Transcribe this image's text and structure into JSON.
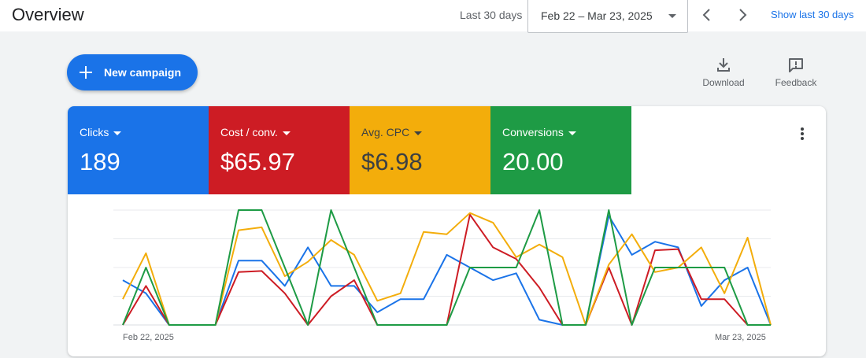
{
  "header": {
    "title": "Overview",
    "range_label": "Last 30 days",
    "date_range": "Feb 22 – Mar 23, 2025",
    "show_last_link": "Show last 30 days"
  },
  "actions": {
    "new_campaign": "New campaign",
    "download": "Download",
    "feedback": "Feedback"
  },
  "metrics": [
    {
      "name": "Clicks",
      "value": "189",
      "color": "#1a73e8"
    },
    {
      "name": "Cost / conv.",
      "value": "$65.97",
      "color": "#cd1c24"
    },
    {
      "name": "Avg. CPC",
      "value": "$6.98",
      "color": "#f3ad0b"
    },
    {
      "name": "Conversions",
      "value": "20.00",
      "color": "#1e9b45"
    }
  ],
  "chart_data": {
    "type": "line",
    "x_start_label": "Feb 22, 2025",
    "x_end_label": "Mar 23, 2025",
    "grid": true,
    "ylim": [
      0,
      2
    ],
    "series": [
      {
        "color": "#1a73e8",
        "values": [
          0.78,
          0.55,
          0,
          0,
          0,
          1.12,
          1.12,
          0.68,
          1.35,
          0.68,
          0.68,
          0.22,
          0.45,
          0.45,
          1.22,
          1.0,
          0.78,
          0.9,
          0.09,
          0,
          0,
          1.9,
          1.22,
          1.45,
          1.35,
          0.33,
          0.78,
          1.0,
          0
        ]
      },
      {
        "color": "#cd1c24",
        "values": [
          0,
          0.68,
          0,
          0,
          0,
          0.92,
          0.94,
          0.55,
          0,
          0.5,
          0.78,
          0,
          0,
          0,
          0,
          1.92,
          1.35,
          1.15,
          0.65,
          0,
          0,
          1.0,
          0,
          1.3,
          1.32,
          0.45,
          0.45,
          0,
          0
        ]
      },
      {
        "color": "#f3ad0b",
        "values": [
          0.45,
          1.25,
          0,
          0,
          0,
          1.65,
          1.7,
          0.85,
          1.1,
          1.48,
          1.22,
          0.42,
          0.55,
          1.62,
          1.58,
          1.95,
          1.78,
          1.18,
          1.4,
          1.18,
          0,
          1.05,
          1.58,
          0.92,
          1.0,
          1.35,
          0.55,
          1.52,
          0
        ]
      },
      {
        "color": "#1e9b45",
        "values": [
          0,
          1.0,
          0,
          0,
          0,
          2.0,
          2.0,
          1.0,
          0,
          2.0,
          1.0,
          0,
          0,
          0,
          0,
          1.0,
          1.0,
          1.0,
          2.0,
          0,
          0,
          2.0,
          0,
          1.0,
          1.0,
          1.0,
          1.0,
          0,
          0
        ]
      }
    ]
  }
}
